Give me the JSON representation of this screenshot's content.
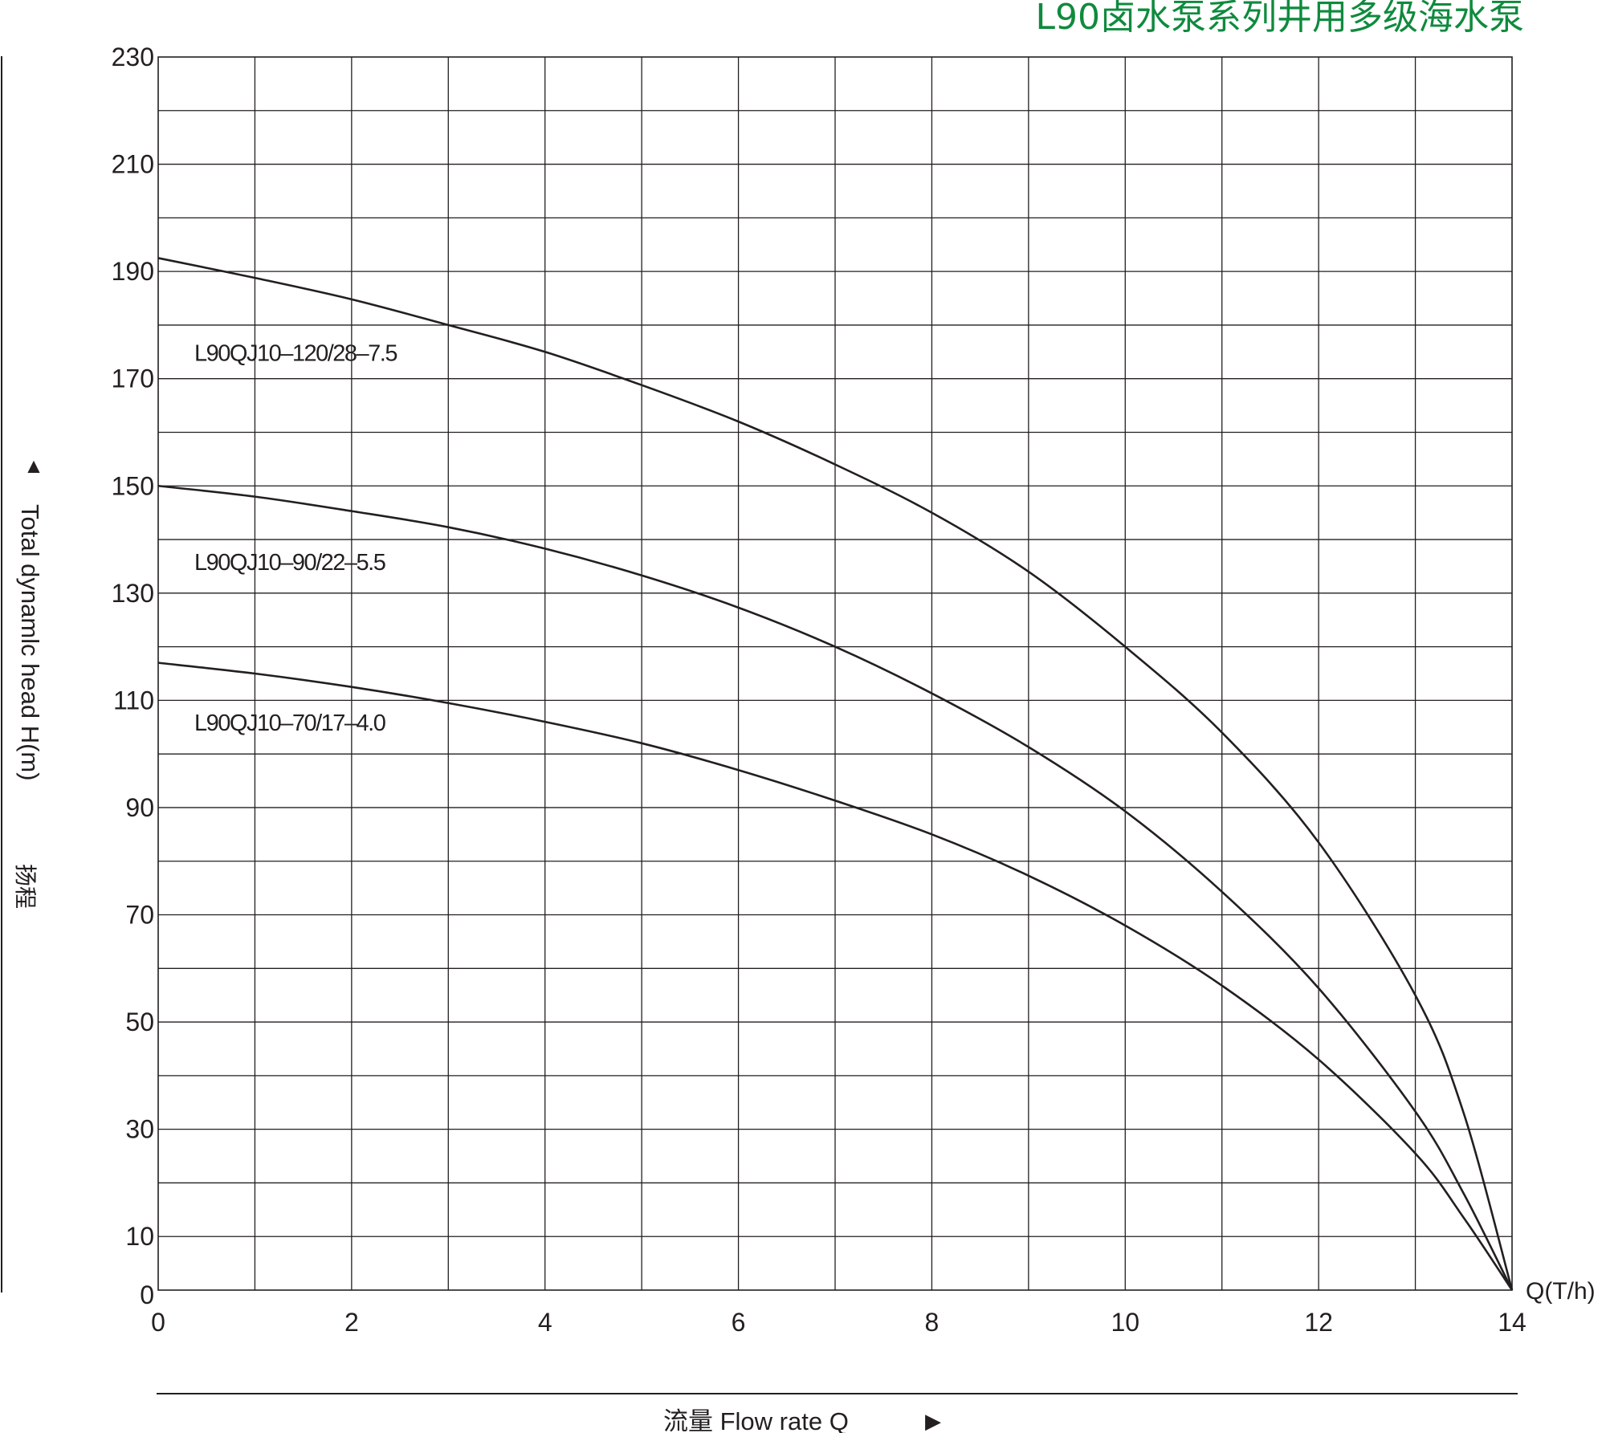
{
  "chart_data": {
    "type": "line",
    "title": "L90卤水泵系列井用多级海水泵",
    "xlabel": "流量 Flow rate Q",
    "xunit": "Q(T/h)",
    "ylabel": "Total dynamlc head H(m)",
    "ylabel_cn": "扬程",
    "xlim": [
      0,
      14
    ],
    "ylim": [
      0,
      230
    ],
    "x_major_ticks": [
      0,
      2,
      4,
      6,
      8,
      10,
      12,
      14
    ],
    "x_minor_step": 1,
    "y_tick_labels": [
      0,
      10,
      30,
      50,
      70,
      90,
      110,
      130,
      150,
      170,
      190,
      210,
      230
    ],
    "y_grid_step": 10,
    "grid": true,
    "line_color": "#231f20",
    "title_color": "#0f8a3e",
    "series": [
      {
        "name": "L90QJ10–120/28–7.5",
        "x": [
          0,
          1,
          2,
          3,
          4,
          5,
          6,
          7,
          8,
          9,
          10,
          11,
          12,
          13,
          13.5,
          14
        ],
        "y": [
          192.5,
          188.8,
          184.8,
          180,
          175,
          168.8,
          162,
          154,
          145,
          134,
          120,
          104,
          83.5,
          55,
          33,
          0
        ]
      },
      {
        "name": "L90QJ10–90/22–5.5",
        "x": [
          0,
          1,
          2,
          3,
          4,
          5,
          6,
          7,
          8,
          9,
          10,
          11,
          12,
          13,
          13.5,
          14
        ],
        "y": [
          150,
          148,
          145.3,
          142.3,
          138.3,
          133.3,
          127.3,
          120,
          111.3,
          101.3,
          89.3,
          74.3,
          56.3,
          33.3,
          18,
          0
        ]
      },
      {
        "name": "L90QJ10–70/17–4.0",
        "x": [
          0,
          1,
          2,
          3,
          4,
          5,
          6,
          7,
          8,
          9,
          10,
          11,
          12,
          13,
          13.5,
          14
        ],
        "y": [
          117,
          115,
          112.5,
          109.5,
          106,
          102,
          97,
          91.3,
          85,
          77.3,
          68,
          56.8,
          43,
          25.5,
          13.5,
          0
        ]
      }
    ]
  }
}
